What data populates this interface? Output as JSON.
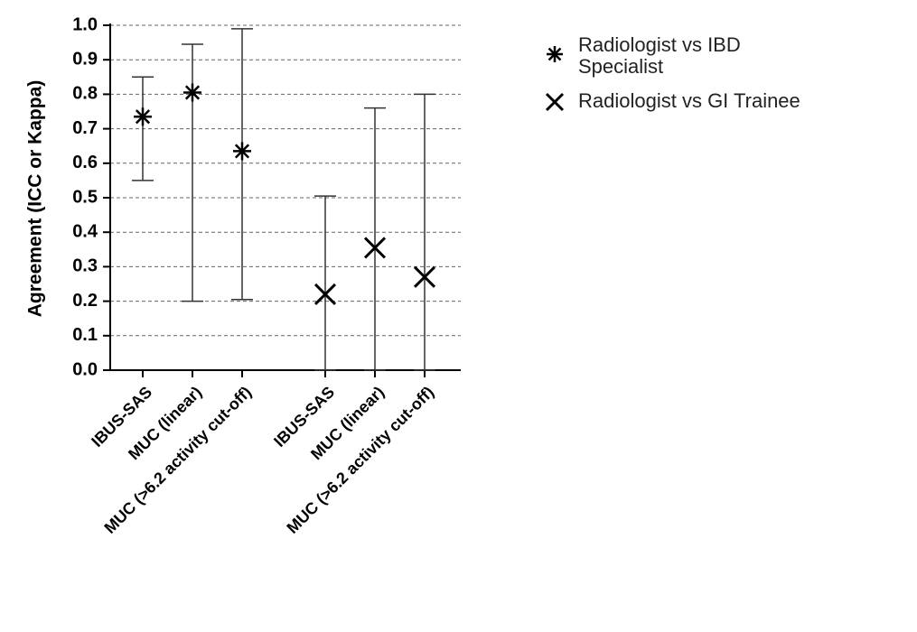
{
  "chart_data": {
    "type": "errorbar",
    "y_label": "Agreement (ICC or Kappa)",
    "categories": [
      "IBUS-SAS",
      "MUC (linear)",
      "MUC (>6.2 activity cut-off)",
      "IBUS-SAS",
      "MUC (linear)",
      "MUC (>6.2 activity cut-off)"
    ],
    "series": [
      {
        "name": "Radiologist vs IBD Specialist",
        "color": "#000000",
        "marker": "asterisk",
        "values": [
          0.735,
          0.805,
          0.635,
          null,
          null,
          null
        ],
        "lower": [
          0.55,
          0.2,
          0.205,
          null,
          null,
          null
        ],
        "upper": [
          0.85,
          0.945,
          0.99,
          null,
          null,
          null
        ]
      },
      {
        "name": "Radiologist vs GI Trainee",
        "color": "#000000",
        "marker": "x",
        "values": [
          null,
          null,
          null,
          0.22,
          0.355,
          0.27
        ],
        "lower": [
          null,
          null,
          null,
          0,
          0,
          0
        ],
        "upper": [
          null,
          null,
          null,
          0.505,
          0.76,
          0.8
        ]
      }
    ],
    "ylim": [
      0,
      1
    ],
    "yticks": [
      {
        "value": 0,
        "label": "0.0"
      },
      0.1,
      0.2,
      0.3,
      0.4,
      0.5,
      0.6,
      0.7,
      0.8,
      0.9,
      {
        "value": 1,
        "label": "1.0"
      }
    ],
    "grid": true,
    "legend": "right"
  }
}
